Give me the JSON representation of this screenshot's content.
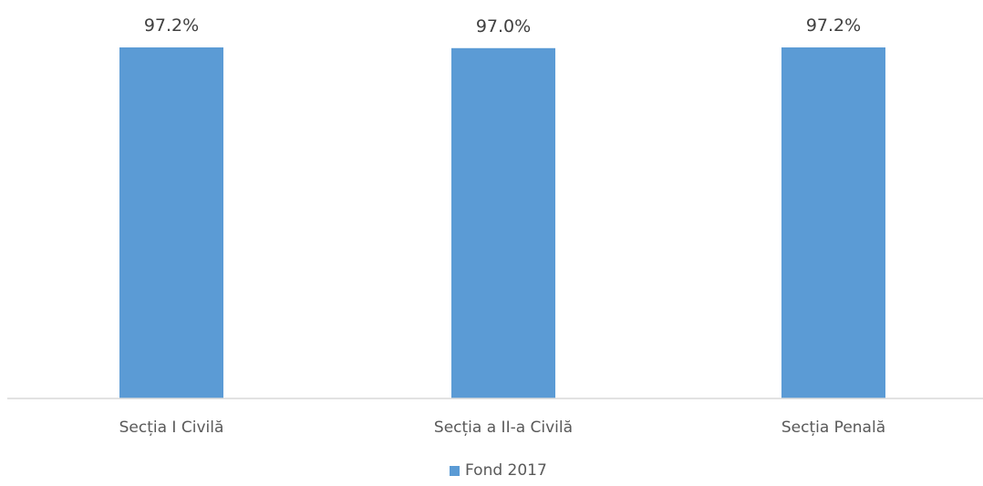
{
  "chart_data": {
    "type": "bar",
    "categories": [
      "Secția I Civilă",
      "Secția a II-a Civilă",
      "Secția Penală"
    ],
    "series": [
      {
        "name": "Fond 2017",
        "values": [
          97.2,
          97.0,
          97.2
        ],
        "labels": [
          "97.2%",
          "97.0%",
          "97.2%"
        ],
        "color": "#5B9BD5"
      }
    ],
    "value_suffix": "%",
    "axis_line_color": "#D9D9D9",
    "legend_position": "bottom",
    "grid": false
  }
}
